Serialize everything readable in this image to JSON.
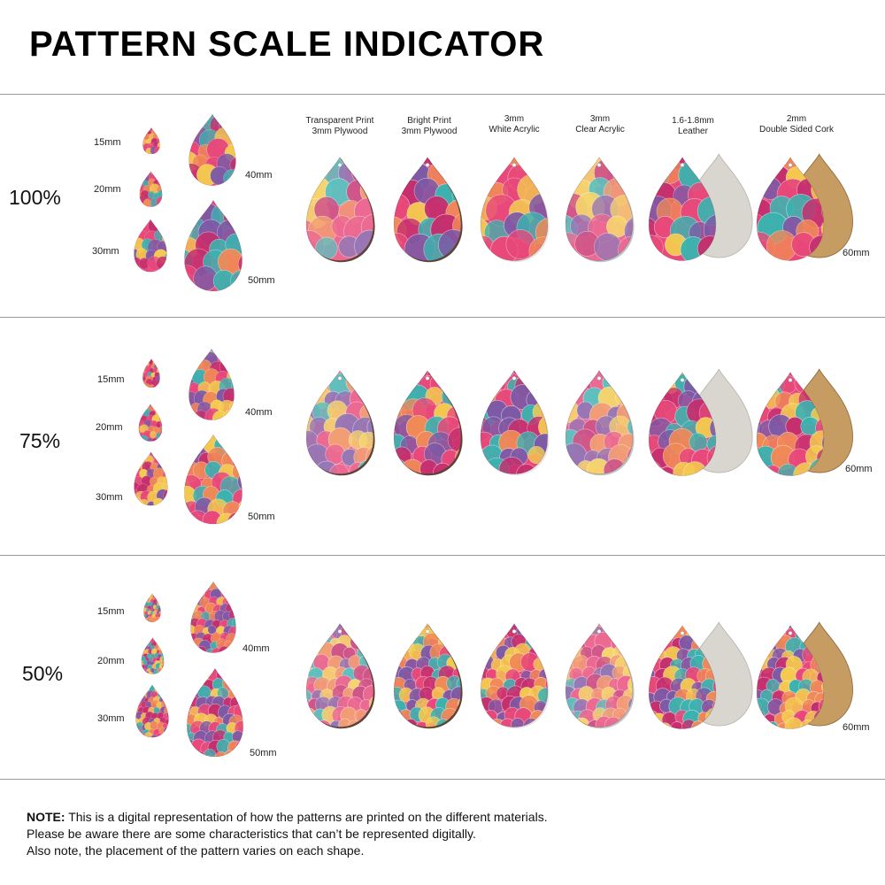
{
  "title": "PATTERN SCALE INDICATOR",
  "colors": {
    "pink": "#e8497a",
    "magenta": "#c42f6e",
    "teal": "#3bb3b0",
    "yellow": "#f4cc4e",
    "orange": "#f08a57",
    "purple": "#7d5aa6",
    "leather": "#d8d6cf",
    "cork": "#c69c63",
    "plywood_edge": "#5a4636",
    "divider": "#9a9a9a"
  },
  "materials": [
    {
      "line1": "Transparent Print",
      "line2": "3mm Plywood",
      "style": "transparent-plywood"
    },
    {
      "line1": "Bright Print",
      "line2": "3mm Plywood",
      "style": "bright-plywood"
    },
    {
      "line1": "3mm",
      "line2": "White Acrylic",
      "style": "white-acrylic"
    },
    {
      "line1": "3mm",
      "line2": "Clear Acrylic",
      "style": "clear-acrylic"
    },
    {
      "line1": "1.6-1.8mm",
      "line2": "Leather",
      "style": "leather"
    },
    {
      "line1": "2mm",
      "line2": "Double Sided Cork",
      "style": "cork"
    }
  ],
  "sections": [
    {
      "scale": "100%",
      "sizes": {
        "s15": "15mm",
        "s20": "20mm",
        "s30": "30mm",
        "s40": "40mm",
        "s50": "50mm",
        "s60": "60mm"
      },
      "palette": [
        "#3bb3b0",
        "#f4cc4e",
        "#7d5aa6",
        "#f08a57"
      ]
    },
    {
      "scale": "75%",
      "sizes": {
        "s15": "15mm",
        "s20": "20mm",
        "s30": "30mm",
        "s40": "40mm",
        "s50": "50mm",
        "s60": "60mm"
      },
      "palette": [
        "#f4cc4e",
        "#3bb3b0",
        "#f08a57",
        "#7d5aa6"
      ]
    },
    {
      "scale": "50%",
      "sizes": {
        "s15": "15mm",
        "s20": "20mm",
        "s30": "30mm",
        "s40": "40mm",
        "s50": "50mm",
        "s60": "60mm"
      },
      "palette": [
        "#f08a57",
        "#f4cc4e",
        "#3bb3b0",
        "#7d5aa6"
      ]
    }
  ],
  "note": {
    "bold": "NOTE:",
    "line1": " This is a digital representation of how the patterns are printed on the different materials.",
    "line2": "Please be aware there are some characteristics that can’t be represented digitally.",
    "line3": "Also note, the placement of the pattern varies on each shape."
  }
}
